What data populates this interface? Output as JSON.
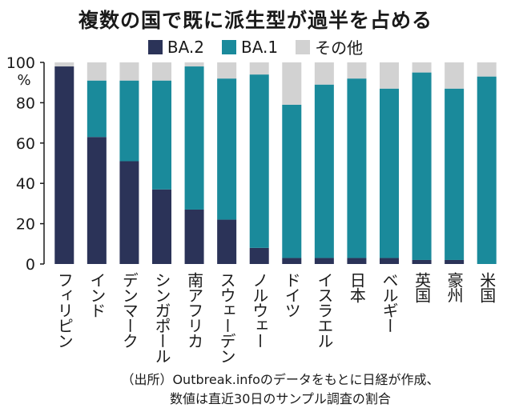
{
  "chart_data": {
    "type": "bar",
    "stacked": true,
    "title": "複数の国で既に派生型が過半を占める",
    "ylabel": "%",
    "ylim": [
      0,
      100
    ],
    "yticks": [
      0,
      20,
      40,
      60,
      80,
      100
    ],
    "legend_position": "top",
    "categories": [
      "フィリピン",
      "インド",
      "デンマーク",
      "シンガポール",
      "南アフリカ",
      "スウェーデン",
      "ノルウェー",
      "ドイツ",
      "イスラエル",
      "日本",
      "ベルギー",
      "英国",
      "豪州",
      "米国"
    ],
    "series": [
      {
        "name": "BA.2",
        "color": "#2b3358",
        "values": [
          98,
          63,
          51,
          37,
          27,
          22,
          8,
          3,
          3,
          3,
          3,
          2,
          2,
          0
        ]
      },
      {
        "name": "BA.1",
        "color": "#1a8a9b",
        "values": [
          0,
          28,
          40,
          54,
          71,
          70,
          86,
          76,
          86,
          89,
          84,
          93,
          85,
          93
        ]
      },
      {
        "name": "その他",
        "color": "#d2d2d2",
        "values": [
          2,
          9,
          9,
          9,
          2,
          8,
          6,
          21,
          11,
          8,
          13,
          5,
          13,
          7
        ]
      }
    ]
  },
  "source_lines": [
    "（出所）Outbreak.infoのデータをもとに日経が作成、",
    "数値は直近30日のサンプル調査の割合"
  ]
}
